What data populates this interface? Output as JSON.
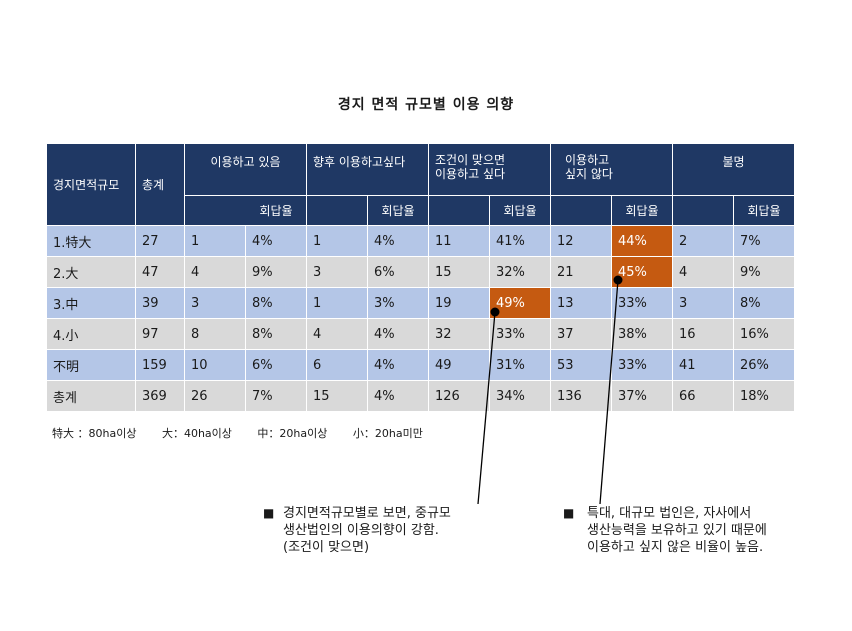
{
  "title": "경지 면적 규모별 이용 의향",
  "table": {
    "header": {
      "area": "경지면적규모",
      "total": "총계",
      "groups": [
        "이용하고 있음",
        "향후 이용하고싶다",
        "조건이 맞으면 이용하고 싶다",
        "이용하고 싶지 않다",
        "불명"
      ],
      "group_lines": {
        "g3": [
          "조건이 맞으면",
          "이용하고 싶다"
        ],
        "g4": [
          "이용하고",
          "싶지 않다"
        ]
      },
      "rate": "회답율"
    },
    "rows": [
      [
        "1.特大",
        "27",
        "1",
        "4%",
        "1",
        "4%",
        "11",
        "41%",
        "12",
        "44%",
        "2",
        "7%"
      ],
      [
        "2.大",
        "47",
        "4",
        "9%",
        "3",
        "6%",
        "15",
        "32%",
        "21",
        "45%",
        "4",
        "9%"
      ],
      [
        "3.中",
        "39",
        "3",
        "8%",
        "1",
        "3%",
        "19",
        "49%",
        "13",
        "33%",
        "3",
        "8%"
      ],
      [
        "4.小",
        "97",
        "8",
        "8%",
        "4",
        "4%",
        "32",
        "33%",
        "37",
        "38%",
        "16",
        "16%"
      ],
      [
        "不明",
        "159",
        "10",
        "6%",
        "6",
        "4%",
        "49",
        "31%",
        "53",
        "33%",
        "41",
        "26%"
      ],
      [
        "총계",
        "369",
        "26",
        "7%",
        "15",
        "4%",
        "126",
        "34%",
        "136",
        "37%",
        "66",
        "18%"
      ]
    ],
    "highlight_color": "#c55a11",
    "header_color": "#1f3864",
    "row_colors": [
      "#b4c6e7",
      "#d9d9d9"
    ]
  },
  "legend": [
    "特大 ：80ha이상",
    "大：40ha이상",
    "中：20ha이상",
    "小：20ha미만"
  ],
  "notes": {
    "left": {
      "bullet": "■",
      "lines": [
        "경지면적규모별로 보면, 중규모",
        "생산법인의 이용의향이 강함.",
        "(조건이 맞으면)"
      ]
    },
    "right": {
      "bullet": "■",
      "lines": [
        "특대, 대규모 법인은, 자사에서",
        "생산능력을 보유하고 있기 때문에",
        "이용하고 싶지 않은 비율이 높음."
      ]
    }
  }
}
